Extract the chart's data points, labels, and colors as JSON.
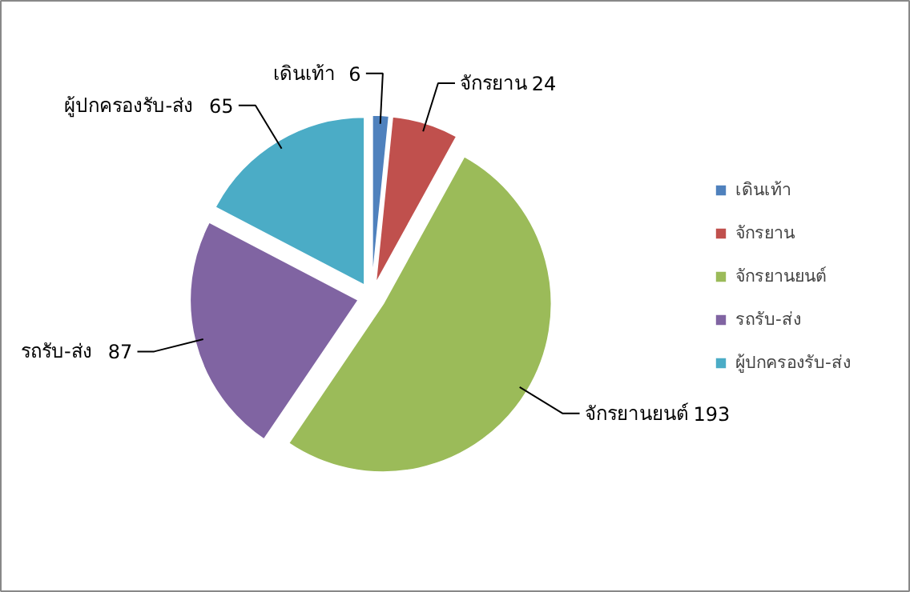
{
  "chart_data": {
    "type": "pie",
    "categories": [
      "เดินเท้า",
      "จักรยาน",
      "จักรยานยนต์",
      "รถรับ-ส่ง",
      "ผู้ปกครองรับ-ส่ง"
    ],
    "values": [
      6,
      24,
      193,
      87,
      65
    ],
    "colors": [
      "#4f81bd",
      "#c0504d",
      "#9bbb59",
      "#8064a2",
      "#4bacc6"
    ],
    "data_labels": true,
    "legend": "right"
  }
}
